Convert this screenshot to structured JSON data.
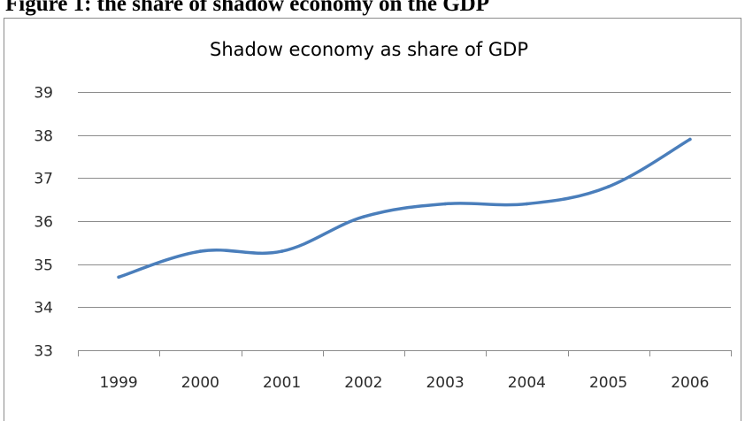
{
  "figure_caption": "Figure 1: the share of shadow economy on the GDP",
  "chart_data": {
    "type": "line",
    "title": "Shadow economy as share of GDP",
    "xlabel": "",
    "ylabel": "",
    "categories": [
      "1999",
      "2000",
      "2001",
      "2002",
      "2003",
      "2004",
      "2005",
      "2006"
    ],
    "series": [
      {
        "values": [
          34.7,
          35.3,
          35.3,
          36.1,
          36.4,
          36.4,
          36.8,
          37.9
        ]
      }
    ],
    "ylim": [
      33,
      39
    ],
    "yticks": [
      33,
      34,
      35,
      36,
      37,
      38,
      39
    ],
    "grid": true,
    "legend": "none",
    "line_color": "#4a7ebb",
    "grid_color": "#8c8c8c"
  }
}
